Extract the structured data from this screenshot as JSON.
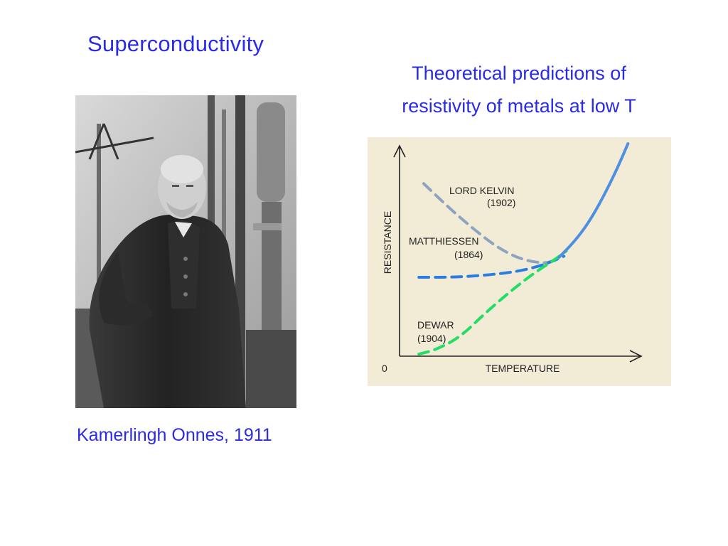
{
  "slide": {
    "title": "Superconductivity",
    "subtitle_line1": "Theoretical predictions of",
    "subtitle_line2": "resistivity of metals at low T",
    "photo_caption": "Kamerlingh Onnes, 1911",
    "photo_icon": "portrait-photo-icon"
  },
  "chart_data": {
    "type": "line",
    "xlabel": "TEMPERATURE",
    "ylabel": "RESISTANCE",
    "origin_label": "0",
    "xlim": [
      0,
      10
    ],
    "ylim": [
      0,
      10
    ],
    "background": "#f2ecd6",
    "series": [
      {
        "name": "LORD KELVIN",
        "year": "(1902)",
        "color": "#8ea3bf",
        "x": [
          1.0,
          2.0,
          3.0,
          4.0,
          5.0,
          6.0,
          6.4
        ],
        "y": [
          8.2,
          7.1,
          6.1,
          5.2,
          4.6,
          4.4,
          4.55
        ]
      },
      {
        "name": "MATTHIESSEN",
        "year": "(1864)",
        "color": "#2a7de1",
        "x": [
          0.8,
          2.0,
          3.0,
          4.0,
          5.0,
          6.0,
          6.8
        ],
        "y": [
          3.75,
          3.75,
          3.8,
          3.9,
          4.05,
          4.35,
          4.75
        ]
      },
      {
        "name": "DEWAR",
        "year": "(1904)",
        "color": "#22dd66",
        "x": [
          0.8,
          1.5,
          2.5,
          3.5,
          4.5,
          5.5,
          6.5,
          6.9
        ],
        "y": [
          0.1,
          0.3,
          0.9,
          2.0,
          3.0,
          3.9,
          4.65,
          5.0
        ]
      },
      {
        "name": "",
        "year": "",
        "color": "#4e8fe0",
        "x": [
          6.6,
          7.2,
          7.8,
          8.4,
          9.0,
          9.45
        ],
        "y": [
          4.7,
          5.4,
          6.3,
          7.5,
          8.9,
          10.1
        ]
      }
    ]
  }
}
